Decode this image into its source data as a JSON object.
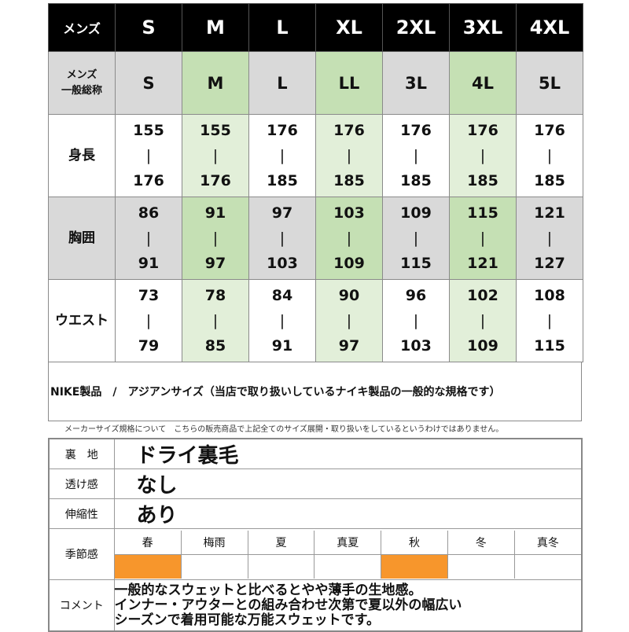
{
  "size_chart": {
    "header_label": "メンズ",
    "sizes": [
      "S",
      "M",
      "L",
      "XL",
      "2XL",
      "3XL",
      "4XL"
    ],
    "alias_label": "メンズ\n一般総称",
    "aliases": [
      "S",
      "M",
      "L",
      "LL",
      "3L",
      "4L",
      "5L"
    ],
    "separator": "|",
    "rows": [
      {
        "label": "身長",
        "ranges": [
          [
            "155",
            "176"
          ],
          [
            "155",
            "176"
          ],
          [
            "176",
            "185"
          ],
          [
            "176",
            "185"
          ],
          [
            "176",
            "185"
          ],
          [
            "176",
            "185"
          ],
          [
            "176",
            "185"
          ]
        ]
      },
      {
        "label": "胸囲",
        "ranges": [
          [
            "86",
            "91"
          ],
          [
            "91",
            "97"
          ],
          [
            "97",
            "103"
          ],
          [
            "103",
            "109"
          ],
          [
            "109",
            "115"
          ],
          [
            "115",
            "121"
          ],
          [
            "121",
            "127"
          ]
        ]
      },
      {
        "label": "ウエスト",
        "ranges": [
          [
            "73",
            "79"
          ],
          [
            "78",
            "85"
          ],
          [
            "84",
            "91"
          ],
          [
            "90",
            "97"
          ],
          [
            "96",
            "103"
          ],
          [
            "102",
            "109"
          ],
          [
            "108",
            "115"
          ]
        ]
      }
    ],
    "highlight_color": "#c5e0b4",
    "header_bg": "#000000",
    "grey_bg": "#d9d9d9"
  },
  "note": "NIKE製品　/　アジアンサイズ（当店で取り扱いしているナイキ製品の一般的な規格です）",
  "disclaimer": "メーカーサイズ規格について　こちらの販売商品で上記全てのサイズ展開・取り扱いをしているというわけではありません。",
  "properties": {
    "lining_label": "裏　地",
    "lining_value": "ドライ裏毛",
    "sheer_label": "透け感",
    "sheer_value": "なし",
    "stretch_label": "伸縮性",
    "stretch_value": "あり",
    "season_label": "季節感",
    "seasons": [
      "春",
      "梅雨",
      "夏",
      "真夏",
      "秋",
      "冬",
      "真冬"
    ],
    "season_active": [
      true,
      false,
      false,
      false,
      true,
      false,
      false
    ],
    "season_color": "#f7962c",
    "comment_label": "コメント",
    "comment": "一般的なスウェットと比べるとやや薄手の生地感。\nインナー・アウターとの組み合わせ次第で夏以外の幅広い\nシーズンで着用可能な万能スウェットです。"
  }
}
